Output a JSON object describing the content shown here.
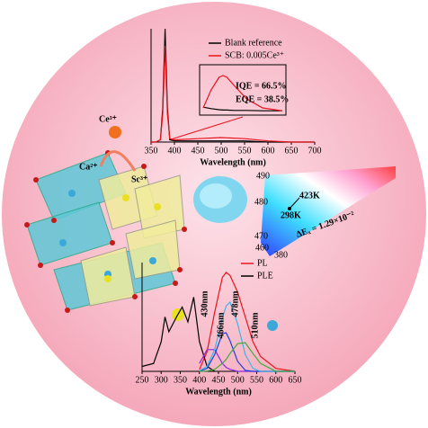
{
  "chart_data": [
    {
      "type": "line",
      "xlabel": "Wavelength (nm)",
      "x": [
        350,
        360,
        370,
        375,
        380,
        385,
        390,
        400,
        450,
        500,
        550,
        600,
        650,
        700
      ],
      "xlim": [
        350,
        700
      ],
      "xticks": [
        350,
        400,
        450,
        500,
        550,
        600,
        650,
        700
      ],
      "ylim": [
        0,
        1
      ],
      "series": [
        {
          "name": "Blank reference",
          "color": "#000000",
          "values": [
            0,
            0,
            0.02,
            0.3,
            1.0,
            0.3,
            0.02,
            0.01,
            0.01,
            0.01,
            0.01,
            0,
            0,
            0
          ]
        },
        {
          "name": "SCB: 0.005Ce³⁺",
          "color": "#e8141c",
          "values": [
            0,
            0,
            0.02,
            0.25,
            0.85,
            0.25,
            0.03,
            0.02,
            0.03,
            0.04,
            0.03,
            0.01,
            0,
            0
          ]
        }
      ]
    },
    {
      "type": "line",
      "annotations": [
        "IQE = 66.5%",
        "EQE = 38.5%"
      ],
      "x": [
        450,
        470,
        490,
        500,
        510,
        530,
        560,
        600,
        650
      ],
      "xlim": [
        450,
        650
      ],
      "ylim": [
        0,
        1
      ],
      "series": [
        {
          "color": "#000000",
          "values": [
            0.12,
            0.08,
            0.05,
            0.04,
            0.04,
            0.03,
            0.03,
            0.02,
            0.02
          ]
        },
        {
          "color": "#e8141c",
          "values": [
            0.1,
            0.6,
            0.95,
            1.0,
            0.95,
            0.7,
            0.35,
            0.1,
            0.02
          ]
        }
      ]
    },
    {
      "type": "line",
      "xlabel": "Wavelength (nm)",
      "x": [
        250,
        280,
        300,
        310,
        320,
        340,
        355,
        370,
        385,
        400,
        420,
        440,
        460,
        470,
        480,
        500,
        520,
        540,
        560,
        600,
        650
      ],
      "xlim": [
        250,
        650
      ],
      "xticks": [
        250,
        300,
        350,
        400,
        450,
        500,
        550,
        600,
        650
      ],
      "ylim": [
        0,
        1.1
      ],
      "series": [
        {
          "name": "PL",
          "color": "#e8141c",
          "values": [
            null,
            null,
            null,
            null,
            null,
            null,
            null,
            null,
            null,
            0.02,
            0.2,
            0.6,
            0.95,
            1.0,
            0.97,
            0.8,
            0.55,
            0.3,
            0.15,
            0.03,
            0
          ]
        },
        {
          "name": "PLE",
          "color": "#000000",
          "values": [
            0.05,
            0.08,
            0.3,
            0.55,
            0.4,
            0.55,
            0.65,
            0.5,
            0.75,
            0.3,
            0.05,
            0,
            null,
            null,
            null,
            null,
            null,
            null,
            null,
            null,
            null
          ]
        },
        {
          "color": "#8a2be2",
          "values": [
            null,
            null,
            null,
            null,
            null,
            null,
            null,
            null,
            null,
            0.08,
            0.22,
            0.22,
            0.08,
            0.04,
            0.02,
            0,
            0,
            0,
            0,
            0,
            0
          ]
        },
        {
          "color": "#1f3fd6",
          "values": [
            null,
            null,
            null,
            null,
            null,
            null,
            null,
            null,
            null,
            0,
            0.03,
            0.17,
            0.38,
            0.39,
            0.31,
            0.1,
            0.01,
            0,
            0,
            0,
            0
          ]
        },
        {
          "color": "#3fb4e8",
          "values": [
            null,
            null,
            null,
            null,
            null,
            null,
            null,
            null,
            null,
            0.005,
            0.05,
            0.22,
            0.54,
            0.66,
            0.7,
            0.48,
            0.17,
            0.03,
            0,
            0,
            0
          ]
        },
        {
          "color": "#3caa3c",
          "values": [
            null,
            null,
            null,
            null,
            null,
            null,
            null,
            null,
            null,
            0,
            0.003,
            0.02,
            0.08,
            0.12,
            0.18,
            0.28,
            0.29,
            0.18,
            0.08,
            0,
            0
          ]
        }
      ],
      "annotations": [
        "430nm",
        "466nm",
        "478nm",
        "510nm"
      ]
    }
  ],
  "structure": {
    "ions": [
      "Ce³⁺",
      "Ca²⁺",
      "Sc³⁺"
    ]
  },
  "cie": {
    "wavelength_labels": [
      "490",
      "480",
      "470",
      "460",
      "380"
    ],
    "points": [
      "298K",
      "423K"
    ],
    "delta": "ΔEₓ = 1.29×10⁻²"
  }
}
